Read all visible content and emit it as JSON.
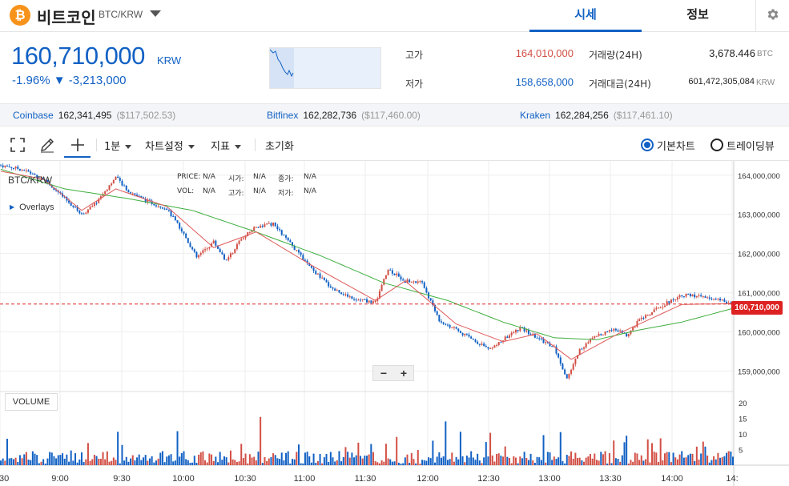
{
  "header": {
    "coin_symbol_glyph": "₿",
    "coin_name": "비트코인",
    "pair": "BTC/KRW",
    "tabs": [
      {
        "label": "시세",
        "active": true
      },
      {
        "label": "정보",
        "active": false
      }
    ],
    "icons": [
      "bitcoin-logo-icon",
      "chevron-down-icon",
      "gear-icon"
    ]
  },
  "ticker": {
    "price": "160,710,000",
    "unit": "KRW",
    "change": "-1.96% ▼ -3,213,000",
    "high_label": "고가",
    "high": "164,010,000",
    "low_label": "저가",
    "low": "158,658,000",
    "volume_label": "거래량(24H)",
    "volume": "3,678.446",
    "volume_unit": "BTC",
    "amount_label": "거래대금(24H)",
    "amount": "601,472,305,084",
    "amount_unit": "KRW"
  },
  "exchanges": [
    {
      "name": "Coinbase",
      "krw": "162,341,495",
      "usd": "($117,502.53)"
    },
    {
      "name": "Bitfinex",
      "krw": "162,282,736",
      "usd": "($117,460.00)"
    },
    {
      "name": "Kraken",
      "krw": "162,284,256",
      "usd": "($117,461.10)"
    }
  ],
  "toolbar": {
    "interval": "1분",
    "chart_settings": "차트설정",
    "indicators": "지표",
    "reset": "초기화",
    "basic_chart": "기본차트",
    "tradingview": "트레이딩뷰",
    "basic_chart_selected": true
  },
  "chart": {
    "symbol": "BTC/KRW",
    "overlays_label": "Overlays",
    "ohlc": {
      "price_label": "PRICE:",
      "price": "N/A",
      "open_label": "시가:",
      "open": "N/A",
      "close_label": "종가:",
      "close": "N/A",
      "vol_label": "VOL:",
      "vol": "N/A",
      "high_label": "고가:",
      "high": "N/A",
      "low_label": "저가:",
      "low": "N/A"
    },
    "volume_label": "VOLUME",
    "current_price_tag": "160,710,000",
    "zoom_out": "−",
    "zoom_in": "+",
    "colors": {
      "up": "#d24f45",
      "down": "#1261c4",
      "ma_short": "#e05a5a",
      "ma_long": "#3fae3f"
    }
  },
  "chart_data": {
    "type": "candlestick",
    "y_axis_ticks": [
      "164,000,000",
      "163,000,000",
      "162,000,000",
      "161,000,000",
      "160,000,000",
      "159,000,000"
    ],
    "ylim": [
      158600000,
      164200000
    ],
    "volume_axis_ticks": [
      "20",
      "15",
      "10",
      "5"
    ],
    "x_axis_ticks": [
      ":30",
      "9:00",
      "9:30",
      "10:00",
      "10:30",
      "11:00",
      "11:30",
      "12:00",
      "12:30",
      "13:00",
      "13:30",
      "14:00",
      "14:"
    ],
    "price_path": [
      [
        0,
        164250000
      ],
      [
        10,
        164150000
      ],
      [
        20,
        163900000
      ],
      [
        30,
        163400000
      ],
      [
        38,
        163000000
      ],
      [
        44,
        163250000
      ],
      [
        54,
        163950000
      ],
      [
        60,
        163600000
      ],
      [
        68,
        163350000
      ],
      [
        78,
        163150000
      ],
      [
        86,
        162500000
      ],
      [
        92,
        161900000
      ],
      [
        100,
        162300000
      ],
      [
        106,
        161800000
      ],
      [
        112,
        162300000
      ],
      [
        120,
        162700000
      ],
      [
        128,
        162750000
      ],
      [
        136,
        162250000
      ],
      [
        146,
        161600000
      ],
      [
        156,
        161100000
      ],
      [
        166,
        160850000
      ],
      [
        176,
        160750000
      ],
      [
        182,
        161600000
      ],
      [
        190,
        161300000
      ],
      [
        198,
        161250000
      ],
      [
        206,
        160300000
      ],
      [
        214,
        160050000
      ],
      [
        222,
        159800000
      ],
      [
        230,
        159550000
      ],
      [
        236,
        159800000
      ],
      [
        244,
        160100000
      ],
      [
        252,
        159850000
      ],
      [
        260,
        159600000
      ],
      [
        266,
        158800000
      ],
      [
        272,
        159550000
      ],
      [
        280,
        159900000
      ],
      [
        288,
        160100000
      ],
      [
        294,
        159900000
      ],
      [
        300,
        160300000
      ],
      [
        310,
        160650000
      ],
      [
        320,
        160950000
      ],
      [
        330,
        160900000
      ],
      [
        338,
        160800000
      ],
      [
        344,
        160710000
      ]
    ],
    "ma_short_path": [
      [
        0,
        164100000
      ],
      [
        20,
        163900000
      ],
      [
        38,
        163100000
      ],
      [
        54,
        163650000
      ],
      [
        78,
        163200000
      ],
      [
        100,
        162150000
      ],
      [
        120,
        162550000
      ],
      [
        146,
        161700000
      ],
      [
        176,
        160800000
      ],
      [
        190,
        161300000
      ],
      [
        214,
        160200000
      ],
      [
        236,
        159750000
      ],
      [
        252,
        159950000
      ],
      [
        268,
        159300000
      ],
      [
        290,
        159950000
      ],
      [
        320,
        160700000
      ],
      [
        344,
        160720000
      ]
    ],
    "ma_long_path": [
      [
        0,
        164150000
      ],
      [
        30,
        163650000
      ],
      [
        60,
        163400000
      ],
      [
        90,
        163100000
      ],
      [
        120,
        162550000
      ],
      [
        150,
        161950000
      ],
      [
        180,
        161250000
      ],
      [
        210,
        160800000
      ],
      [
        236,
        160250000
      ],
      [
        260,
        159850000
      ],
      [
        280,
        159800000
      ],
      [
        300,
        160050000
      ],
      [
        320,
        160250000
      ],
      [
        344,
        160600000
      ]
    ]
  }
}
